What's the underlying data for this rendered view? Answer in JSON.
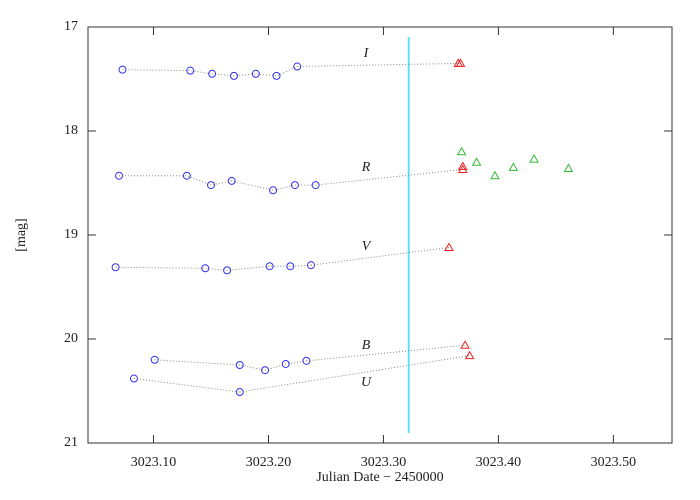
{
  "chart_data": {
    "type": "scatter",
    "x_label": "Julian Date − 2450000",
    "y_label": "[mag]",
    "xlim": [
      3023.043,
      3023.551
    ],
    "xticks": [
      {
        "value": 3023.1,
        "label": "3023.10"
      },
      {
        "value": 3023.2,
        "label": "3023.20"
      },
      {
        "value": 3023.3,
        "label": "3023.30"
      },
      {
        "value": 3023.4,
        "label": "3023.40"
      },
      {
        "value": 3023.5,
        "label": "3023.50"
      }
    ],
    "ylim": [
      21,
      17
    ],
    "yticks": [
      17,
      18,
      19,
      20,
      21
    ],
    "vline": {
      "x": 3023.322,
      "color": "#66e0f0"
    },
    "series": [
      {
        "name": "I",
        "groups": [
          {
            "marker": "circle",
            "color": "#3333ee",
            "x": [
              3023.073,
              3023.132,
              3023.151,
              3023.17,
              3023.189,
              3023.207,
              3023.225
            ],
            "values": [
              17.41,
              17.42,
              17.45,
              17.47,
              17.45,
              17.47,
              17.38
            ]
          },
          {
            "marker": "triangle",
            "color": "#ee2222",
            "x": [
              3023.365,
              3023.367
            ],
            "values": [
              17.35,
              17.35
            ]
          }
        ]
      },
      {
        "name": "R",
        "groups": [
          {
            "marker": "circle",
            "color": "#3333ee",
            "x": [
              3023.07,
              3023.129,
              3023.15,
              3023.168,
              3023.204,
              3023.223,
              3023.241
            ],
            "values": [
              18.43,
              18.43,
              18.52,
              18.48,
              18.57,
              18.52,
              18.52
            ]
          },
          {
            "marker": "triangle",
            "color": "#ee2222",
            "x": [
              3023.369,
              3023.369
            ],
            "values": [
              18.37,
              18.34
            ]
          },
          {
            "marker": "triangle",
            "color": "#33bb33",
            "x": [
              3023.368,
              3023.381,
              3023.397,
              3023.413,
              3023.431,
              3023.461
            ],
            "values": [
              18.2,
              18.3,
              18.43,
              18.35,
              18.27,
              18.36
            ]
          }
        ]
      },
      {
        "name": "V",
        "groups": [
          {
            "marker": "circle",
            "color": "#3333ee",
            "x": [
              3023.067,
              3023.145,
              3023.164,
              3023.201,
              3023.219,
              3023.237
            ],
            "values": [
              19.31,
              19.32,
              19.34,
              19.3,
              19.3,
              19.29
            ]
          },
          {
            "marker": "triangle",
            "color": "#ee2222",
            "x": [
              3023.357
            ],
            "values": [
              19.12
            ]
          }
        ]
      },
      {
        "name": "B",
        "groups": [
          {
            "marker": "circle",
            "color": "#3333ee",
            "x": [
              3023.101,
              3023.175,
              3023.197,
              3023.215,
              3023.233
            ],
            "values": [
              20.2,
              20.25,
              20.3,
              20.24,
              20.21
            ]
          },
          {
            "marker": "triangle",
            "color": "#ee2222",
            "x": [
              3023.371
            ],
            "values": [
              20.06
            ]
          }
        ]
      },
      {
        "name": "U",
        "groups": [
          {
            "marker": "circle",
            "color": "#3333ee",
            "x": [
              3023.083,
              3023.175
            ],
            "values": [
              20.38,
              20.51
            ]
          },
          {
            "marker": "triangle",
            "color": "#ee2222",
            "x": [
              3023.375
            ],
            "values": [
              20.16
            ]
          }
        ]
      }
    ]
  }
}
